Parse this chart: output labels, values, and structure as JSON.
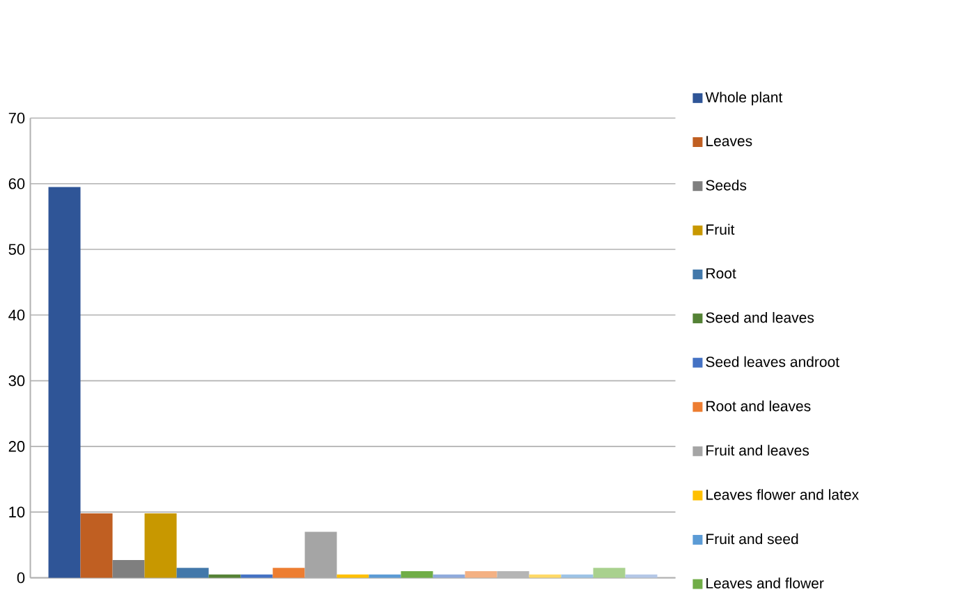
{
  "chart_data": {
    "type": "bar",
    "categories": [
      null
    ],
    "ylim": [
      0,
      70
    ],
    "yticks": [
      0,
      10,
      20,
      30,
      40,
      50,
      60,
      70
    ],
    "grid": "y",
    "legend": "right",
    "series": [
      {
        "name": "Whole plant",
        "color": "#2f5597",
        "values": [
          59.5
        ]
      },
      {
        "name": "Leaves",
        "color": "#c05f22",
        "values": [
          9.8
        ]
      },
      {
        "name": "Seeds",
        "color": "#7f7f7f",
        "values": [
          2.7
        ]
      },
      {
        "name": "Fruit",
        "color": "#c89800",
        "values": [
          9.8
        ]
      },
      {
        "name": "Root",
        "color": "#4278aa",
        "values": [
          1.5
        ]
      },
      {
        "name": "Seed and leaves",
        "color": "#548235",
        "values": [
          0.5
        ]
      },
      {
        "name": "Seed leaves androot",
        "color": "#4472c4",
        "values": [
          0.5
        ]
      },
      {
        "name": "Root and leaves",
        "color": "#ed7d31",
        "values": [
          1.5
        ]
      },
      {
        "name": "Fruit and leaves",
        "color": "#a5a5a5",
        "values": [
          7
        ]
      },
      {
        "name": "Leaves flower and latex",
        "color": "#ffc000",
        "values": [
          0.5
        ]
      },
      {
        "name": "Fruit and seed",
        "color": "#5b9bd5",
        "values": [
          0.5
        ]
      },
      {
        "name": "Leaves and flower",
        "color": "#70ad47",
        "values": [
          1
        ]
      },
      {
        "color": "#8faadc",
        "values": [
          0.5
        ]
      },
      {
        "color": "#f4b183",
        "values": [
          1
        ]
      },
      {
        "color": "#b5b5b5",
        "values": [
          1
        ]
      },
      {
        "color": "#ffd966",
        "values": [
          0.5
        ]
      },
      {
        "color": "#9dc3e6",
        "values": [
          0.5
        ]
      },
      {
        "color": "#a9d18e",
        "values": [
          1.5
        ]
      },
      {
        "color": "#b4c7e7",
        "values": [
          0.5
        ]
      }
    ]
  }
}
